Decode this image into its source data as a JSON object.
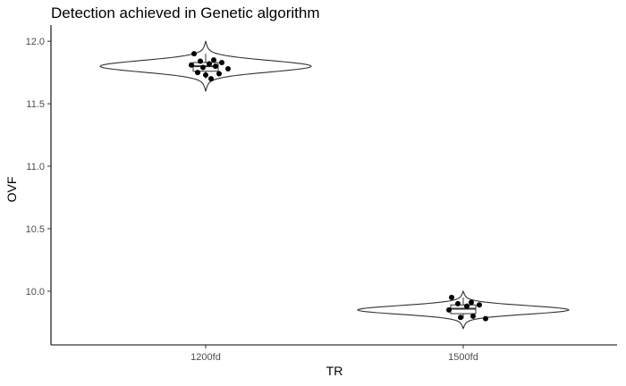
{
  "chart_data": {
    "type": "violin",
    "title": "Detection achieved in Genetic algorithm",
    "xlabel": "TR",
    "ylabel": "OVF",
    "categories": [
      "1200fd",
      "1500fd"
    ],
    "y_ticks": [
      "10.0",
      "10.5",
      "11.0",
      "11.5",
      "12.0"
    ],
    "ylim": [
      9.57,
      12.13
    ],
    "grid": false,
    "groups": [
      {
        "category": "1200fd",
        "violin_range": [
          11.6,
          12.0
        ],
        "box": {
          "min": 11.7,
          "q1": 11.76,
          "median": 11.8,
          "q3": 11.83,
          "max": 11.9
        },
        "points": [
          11.9,
          11.85,
          11.84,
          11.83,
          11.82,
          11.81,
          11.8,
          11.79,
          11.78,
          11.75,
          11.74,
          11.73,
          11.7
        ]
      },
      {
        "category": "1500fd",
        "violin_range": [
          9.7,
          10.0
        ],
        "box": {
          "min": 9.78,
          "q1": 9.82,
          "median": 9.86,
          "q3": 9.89,
          "max": 9.95
        },
        "points": [
          9.95,
          9.91,
          9.9,
          9.89,
          9.88,
          9.85,
          9.8,
          9.79,
          9.78
        ]
      }
    ]
  }
}
